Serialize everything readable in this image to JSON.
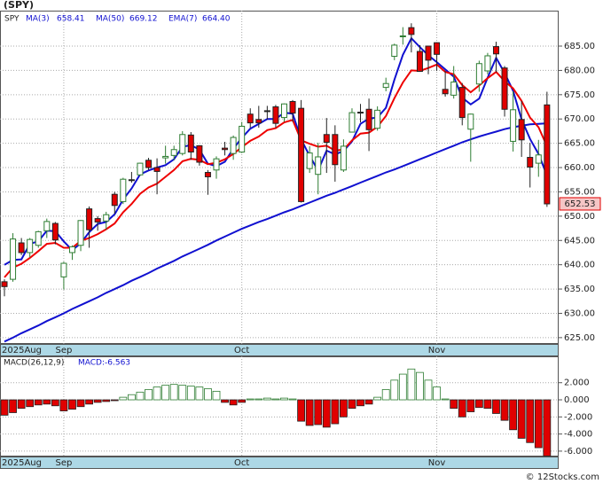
{
  "chart_data": [
    {
      "type": "candlestick",
      "title": "(SPY)",
      "symbol": "SPY",
      "categories": [
        "2025Aug",
        null,
        null,
        null,
        null,
        null,
        null,
        "Sep",
        null,
        null,
        null,
        null,
        null,
        null,
        null,
        null,
        null,
        null,
        null,
        null,
        null,
        null,
        null,
        null,
        null,
        null,
        null,
        null,
        "Oct",
        null,
        null,
        null,
        null,
        null,
        null,
        null,
        null,
        null,
        null,
        null,
        null,
        null,
        null,
        null,
        null,
        null,
        null,
        null,
        null,
        null,
        null,
        "Nov",
        null,
        null,
        null,
        null,
        null,
        null,
        null,
        null,
        null,
        null,
        null,
        null,
        null
      ],
      "open": [
        636.5,
        637,
        644.5,
        642.5,
        644,
        647,
        648.5,
        637.5,
        642.5,
        644,
        651.5,
        649.5,
        649,
        654.5,
        653,
        657.5,
        658.5,
        661.5,
        660,
        662,
        662.5,
        662.9,
        666.7,
        664.5,
        659,
        659.5,
        664,
        662.9,
        663.2,
        671,
        669.9,
        671.7,
        672.5,
        670.3,
        673.6,
        672.2,
        659.8,
        658.6,
        666.8,
        666.8,
        659.5,
        667.3,
        671.4,
        672,
        668.1,
        676.5,
        682.9,
        687.1,
        688.8,
        683.9,
        685,
        685.7,
        676.1,
        674.9,
        676.5,
        667.9,
        677.2,
        679.9,
        684.9,
        680.5,
        665.4,
        669.9,
        662.1,
        660.9,
        672.9
      ],
      "high": [
        637,
        646.5,
        645.5,
        645.5,
        647,
        649.5,
        648.8,
        640.6,
        644,
        649.2,
        652,
        650,
        650.9,
        655,
        657.9,
        659.1,
        661,
        662,
        661.9,
        664.5,
        664.5,
        667.5,
        667.3,
        664.6,
        659.5,
        662.3,
        665.3,
        666.6,
        669.4,
        672.2,
        672.7,
        672.7,
        672.9,
        673.2,
        673.9,
        673.9,
        664.4,
        665.1,
        670.2,
        668.7,
        665.8,
        672.2,
        673.1,
        674.2,
        672.6,
        678.5,
        685.5,
        688.9,
        689.7,
        685.2,
        685.1,
        685.8,
        679.9,
        680.9,
        677.4,
        671.1,
        682,
        683.6,
        685.9,
        680.9,
        675.7,
        673.7,
        665.1,
        665.7,
        675.6
      ],
      "low": [
        633.5,
        636.5,
        642,
        641.5,
        643.5,
        645.5,
        644.2,
        634.9,
        641,
        642.8,
        643.5,
        647,
        647.2,
        650.5,
        652.5,
        656.9,
        658.3,
        659.5,
        654.5,
        660.8,
        661.5,
        662.5,
        661.6,
        660.4,
        654.4,
        657.7,
        662.5,
        661.6,
        663,
        668.2,
        668.2,
        669.9,
        668.2,
        669.4,
        669.4,
        652.8,
        658.9,
        654.5,
        658.9,
        657.1,
        659.1,
        667.3,
        669.3,
        663.4,
        667.6,
        675.7,
        682.1,
        685.3,
        683.7,
        679.7,
        679.2,
        679.9,
        674.6,
        674.2,
        668.7,
        661.2,
        675.6,
        679.2,
        679.6,
        670.5,
        663.3,
        662.2,
        655.9,
        658.1,
        651.9
      ],
      "close": [
        635.5,
        645.3,
        642.5,
        645.2,
        646.8,
        648.9,
        645.1,
        640.3,
        643.7,
        649.1,
        647.2,
        648.8,
        650.3,
        652.2,
        657.6,
        657.4,
        660.9,
        660.0,
        659.2,
        662.3,
        663.7,
        666.8,
        663.2,
        661.1,
        658.1,
        661.8,
        663.7,
        666.2,
        668.5,
        669.2,
        669.2,
        671.6,
        669.1,
        673.1,
        671.2,
        653.0,
        663.0,
        662.2,
        665.2,
        660.6,
        664.4,
        671.3,
        671.3,
        667.8,
        671.8,
        677.3,
        685.2,
        687.1,
        687.4,
        679.8,
        682.1,
        683.3,
        675.2,
        677.6,
        670.3,
        671.0,
        681.4,
        683.0,
        683.4,
        672.0,
        671.9,
        665.7,
        660.1,
        662.6,
        652.53
      ],
      "up_color": "#2e7d32",
      "down_color": "#e00000",
      "series": [
        {
          "name": "MA(3)",
          "value_label": "658.41",
          "color": "#1010d0",
          "values": [
            640,
            641,
            641.1,
            644.3,
            644.8,
            647.0,
            646.9,
            644.8,
            643.0,
            644.4,
            646.7,
            648.4,
            648.8,
            650.4,
            653.4,
            655.7,
            658.6,
            659.4,
            660.0,
            660.5,
            661.7,
            664.3,
            664.6,
            663.7,
            660.8,
            660.3,
            661.2,
            663.9,
            666.1,
            668.0,
            669.0,
            670.0,
            670.0,
            671.3,
            671.1,
            665.8,
            662.4,
            659.4,
            663.5,
            662.7,
            663.4,
            665.4,
            669.0,
            670.1,
            670.3,
            672.3,
            678.1,
            683.2,
            686.6,
            684.8,
            683.1,
            681.7,
            680.2,
            678.7,
            674.4,
            673.0,
            674.2,
            678.5,
            682.6,
            679.5,
            675.8,
            669.9,
            665.9,
            662.8,
            658.41
          ]
        },
        {
          "name": "MA(50)",
          "value_label": "669.12",
          "color": "#1010d0",
          "values": [
            624.2,
            625.0,
            625.9,
            626.7,
            627.5,
            628.4,
            629.2,
            630.0,
            630.9,
            631.7,
            632.5,
            633.3,
            634.2,
            635.0,
            635.8,
            636.7,
            637.5,
            638.3,
            639.2,
            640.0,
            640.8,
            641.7,
            642.5,
            643.3,
            644.1,
            645.0,
            645.8,
            646.6,
            647.4,
            648.1,
            648.8,
            649.4,
            650.1,
            650.8,
            651.4,
            652.1,
            652.8,
            653.5,
            654.2,
            654.8,
            655.5,
            656.2,
            656.9,
            657.6,
            658.3,
            659.0,
            659.6,
            660.3,
            661.0,
            661.7,
            662.4,
            663.1,
            663.8,
            664.5,
            665.2,
            665.8,
            666.4,
            666.9,
            667.4,
            667.9,
            668.3,
            668.6,
            668.9,
            669.0,
            669.12
          ]
        },
        {
          "name": "EMA(7)",
          "value_label": "664.40",
          "color": "#ee0000",
          "values": [
            637.4,
            639.4,
            640.2,
            641.4,
            642.8,
            644.3,
            644.5,
            643.5,
            643.5,
            644.9,
            645.5,
            646.3,
            647.3,
            648.5,
            650.8,
            652.5,
            654.6,
            655.9,
            656.7,
            658.1,
            659.5,
            661.3,
            661.8,
            661.6,
            660.7,
            661.0,
            661.7,
            662.8,
            664.2,
            665.5,
            666.4,
            667.7,
            668.1,
            669.3,
            669.8,
            665.6,
            664.9,
            664.3,
            664.5,
            663.5,
            663.7,
            665.6,
            667.0,
            667.2,
            668.4,
            670.6,
            674.3,
            677.5,
            680.0,
            679.9,
            680.5,
            681.2,
            679.7,
            679.2,
            677.0,
            675.5,
            676.9,
            678.4,
            679.7,
            677.8,
            676.3,
            673.7,
            670.3,
            668.3,
            664.4
          ]
        }
      ],
      "ylim": [
        623.7,
        692.3
      ],
      "yticks": [
        {
          "value": 625,
          "label": "625.00"
        },
        {
          "value": 630,
          "label": "630.00"
        },
        {
          "value": 635,
          "label": "635.00"
        },
        {
          "value": 640,
          "label": "640.00"
        },
        {
          "value": 645,
          "label": "645.00"
        },
        {
          "value": 650,
          "label": "650.00"
        },
        {
          "value": 655,
          "label": "655.00"
        },
        {
          "value": 660,
          "label": "660.00"
        },
        {
          "value": 665,
          "label": "665.00"
        },
        {
          "value": 670,
          "label": "670.00"
        },
        {
          "value": 675,
          "label": "675.00"
        },
        {
          "value": 680,
          "label": "680.00"
        },
        {
          "value": 685,
          "label": "685.00"
        }
      ],
      "grid": true
    },
    {
      "type": "bar",
      "title": "MACD(26,12,9)",
      "value_label": "MACD:-6.563",
      "categories": [
        "2025Aug",
        null,
        null,
        null,
        null,
        null,
        null,
        "Sep",
        null,
        null,
        null,
        null,
        null,
        null,
        null,
        null,
        null,
        null,
        null,
        null,
        null,
        null,
        null,
        null,
        null,
        null,
        null,
        null,
        "Oct",
        null,
        null,
        null,
        null,
        null,
        null,
        null,
        null,
        null,
        null,
        null,
        null,
        null,
        null,
        null,
        null,
        null,
        null,
        null,
        null,
        null,
        null,
        "Nov",
        null,
        null,
        null,
        null,
        null,
        null,
        null,
        null,
        null,
        null,
        null,
        null,
        null
      ],
      "values": [
        -1.8,
        -1.5,
        -1.0,
        -0.8,
        -0.6,
        -0.5,
        -0.7,
        -1.3,
        -1.1,
        -0.8,
        -0.5,
        -0.3,
        -0.2,
        -0.1,
        0.3,
        0.6,
        0.9,
        1.2,
        1.5,
        1.7,
        1.8,
        1.7,
        1.6,
        1.5,
        1.3,
        1.0,
        -0.3,
        -0.6,
        -0.3,
        0.1,
        0.1,
        0.2,
        0.1,
        0.2,
        0.1,
        -2.5,
        -3.0,
        -2.9,
        -3.2,
        -2.8,
        -2.0,
        -1.0,
        -0.7,
        -0.5,
        0.3,
        1.2,
        2.3,
        3.0,
        3.6,
        3.2,
        2.3,
        1.5,
        0.1,
        -1.0,
        -2.0,
        -1.4,
        -0.9,
        -1.0,
        -1.6,
        -2.4,
        -3.5,
        -4.5,
        -5.0,
        -5.6,
        -6.563
      ],
      "up_color": "#2e7d32",
      "down_color": "#e00000",
      "ylim": [
        -6.63,
        5.08
      ],
      "yticks": [
        {
          "value": -6,
          "label": "-6.000"
        },
        {
          "value": -4,
          "label": "-4.000"
        },
        {
          "value": -2,
          "label": "-2.000"
        },
        {
          "value": 0,
          "label": "0.000"
        },
        {
          "value": 2,
          "label": "2.000"
        }
      ],
      "grid": true
    }
  ],
  "footer": "© 12Stocks.com"
}
